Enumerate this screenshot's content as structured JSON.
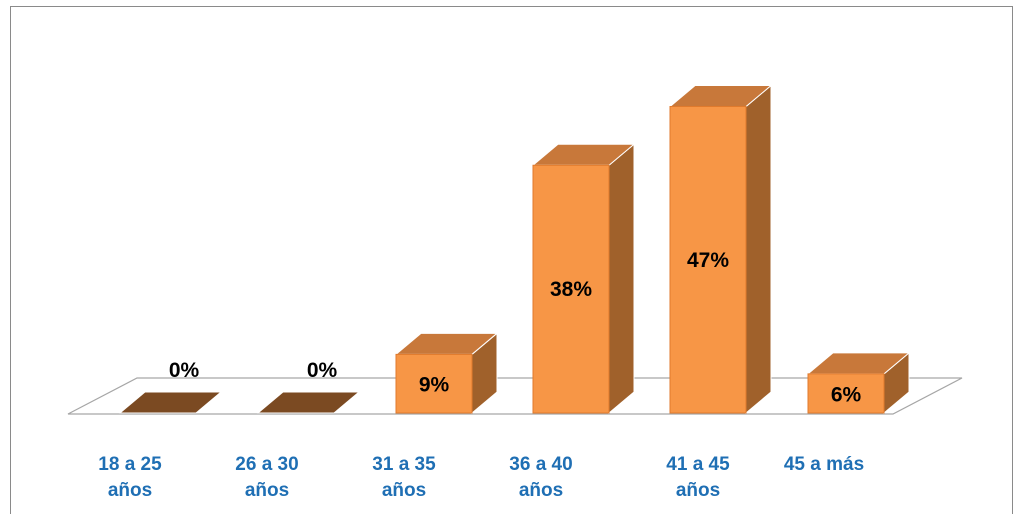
{
  "chart_data": {
    "type": "bar",
    "categories": [
      "18 a 25\naños",
      "26 a 30\naños",
      "31 a 35\naños",
      "36 a 40\naños",
      "41 a 45\naños",
      "45 a más"
    ],
    "values": [
      0,
      0,
      9,
      38,
      47,
      6
    ],
    "data_labels": [
      "0%",
      "0%",
      "9%",
      "38%",
      "47%",
      "6%"
    ],
    "ylim": [
      0,
      50
    ],
    "grid": false,
    "legend": "none",
    "bar_color": "#f79646",
    "bar_side_color": "#a0612b",
    "bar_top_color": "#c8783a",
    "empty_bar_color": "#7b4a22",
    "label_color": "#1f6fb4"
  }
}
